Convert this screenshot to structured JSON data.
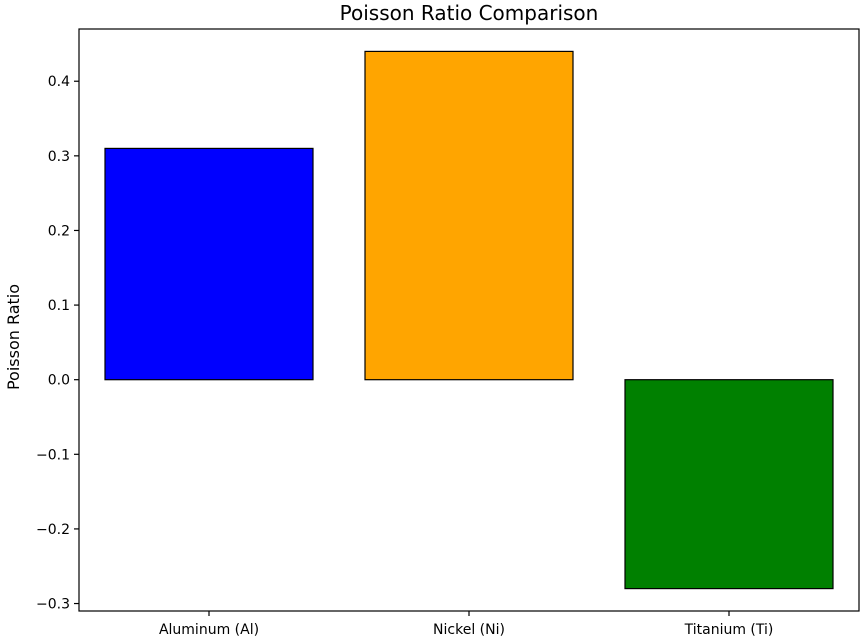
{
  "chart_data": {
    "type": "bar",
    "title": "Poisson Ratio Comparison",
    "xlabel": "",
    "ylabel": "Poisson Ratio",
    "categories": [
      "Aluminum (Al)",
      "Nickel (Ni)",
      "Titanium (Ti)"
    ],
    "values": [
      0.31,
      0.44,
      -0.28
    ],
    "colors": [
      "#0000ff",
      "#ffa500",
      "#008000"
    ],
    "edge_color": "#000000",
    "ylim": [
      -0.31,
      0.47
    ],
    "yticks": [
      -0.3,
      -0.2,
      -0.1,
      0.0,
      0.1,
      0.2,
      0.3,
      0.4
    ],
    "ytick_labels": [
      "−0.3",
      "−0.2",
      "−0.1",
      "0.0",
      "0.1",
      "0.2",
      "0.3",
      "0.4"
    ],
    "grid": false,
    "legend": "none"
  }
}
